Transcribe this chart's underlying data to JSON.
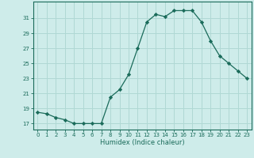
{
  "x": [
    0,
    1,
    2,
    3,
    4,
    5,
    6,
    7,
    8,
    9,
    10,
    11,
    12,
    13,
    14,
    15,
    16,
    17,
    18,
    19,
    20,
    21,
    22,
    23
  ],
  "y": [
    18.5,
    18.3,
    17.8,
    17.5,
    17.0,
    17.0,
    17.0,
    17.0,
    20.5,
    21.5,
    23.5,
    27.0,
    30.5,
    31.5,
    31.2,
    32.0,
    32.0,
    32.0,
    30.5,
    28.0,
    26.0,
    25.0,
    24.0,
    23.0
  ],
  "line_color": "#1a6b5a",
  "marker": "D",
  "marker_size": 2.2,
  "bg_color": "#ceecea",
  "grid_color": "#b0d8d4",
  "xlabel": "Humidex (Indice chaleur)",
  "yticks": [
    17,
    19,
    21,
    23,
    25,
    27,
    29,
    31
  ],
  "xticks": [
    0,
    1,
    2,
    3,
    4,
    5,
    6,
    7,
    8,
    9,
    10,
    11,
    12,
    13,
    14,
    15,
    16,
    17,
    18,
    19,
    20,
    21,
    22,
    23
  ],
  "ylim": [
    16.2,
    33.2
  ],
  "xlim": [
    -0.5,
    23.5
  ],
  "tick_color": "#1a6b5a",
  "label_color": "#1a6b5a",
  "spine_color": "#1a6b5a"
}
